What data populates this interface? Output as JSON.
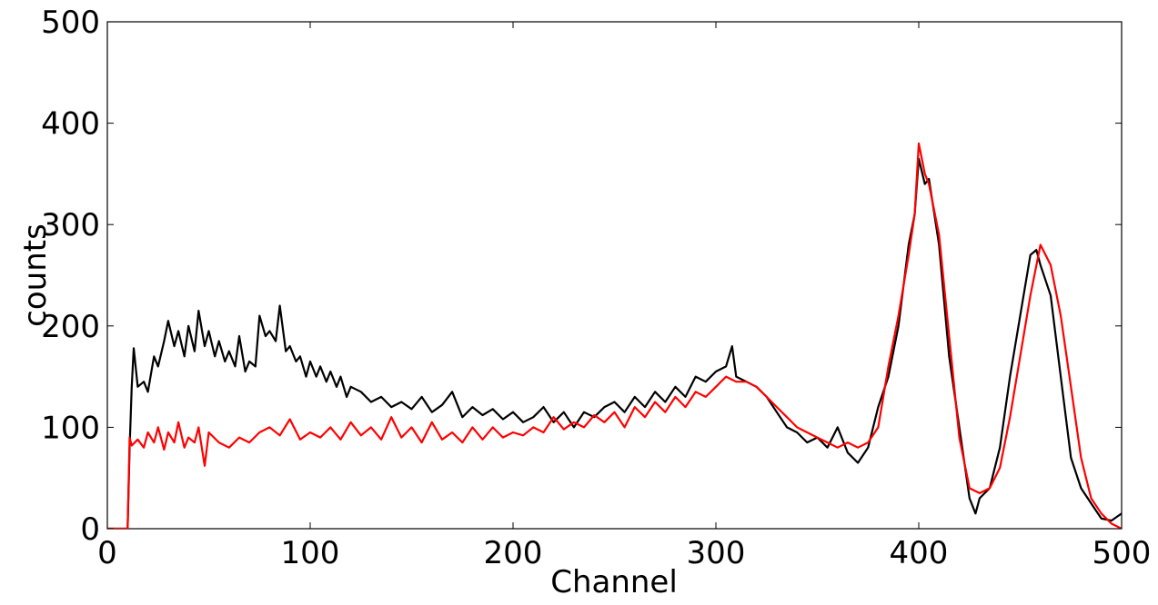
{
  "chart_data": {
    "type": "line",
    "title": "",
    "xlabel": "Channel",
    "ylabel": "counts",
    "xlim": [
      0,
      500
    ],
    "ylim": [
      0,
      500
    ],
    "xticks": [
      0,
      100,
      200,
      300,
      400,
      500
    ],
    "yticks": [
      0,
      100,
      200,
      300,
      400,
      500
    ],
    "grid": false,
    "legend": "none",
    "series": [
      {
        "color": "#000000",
        "x": [
          0,
          5,
          10,
          11,
          12,
          13,
          15,
          18,
          20,
          23,
          25,
          28,
          30,
          33,
          35,
          38,
          40,
          43,
          45,
          48,
          50,
          53,
          55,
          58,
          60,
          63,
          65,
          68,
          70,
          73,
          75,
          78,
          80,
          83,
          85,
          88,
          90,
          93,
          95,
          98,
          100,
          103,
          105,
          108,
          110,
          113,
          115,
          118,
          120,
          125,
          130,
          135,
          140,
          145,
          150,
          155,
          160,
          165,
          170,
          175,
          180,
          185,
          190,
          195,
          200,
          205,
          210,
          215,
          220,
          225,
          230,
          235,
          240,
          245,
          250,
          255,
          260,
          265,
          270,
          275,
          280,
          285,
          290,
          295,
          300,
          305,
          308,
          310,
          315,
          320,
          325,
          330,
          335,
          340,
          345,
          350,
          355,
          360,
          365,
          370,
          375,
          380,
          385,
          390,
          395,
          398,
          400,
          403,
          405,
          410,
          415,
          420,
          425,
          428,
          430,
          435,
          440,
          445,
          450,
          455,
          458,
          460,
          465,
          470,
          475,
          480,
          485,
          490,
          495,
          500
        ],
        "y": [
          0,
          0,
          0,
          80,
          140,
          178,
          140,
          145,
          135,
          170,
          160,
          185,
          205,
          180,
          195,
          170,
          200,
          175,
          215,
          180,
          195,
          170,
          185,
          165,
          175,
          160,
          190,
          155,
          165,
          160,
          210,
          190,
          195,
          185,
          220,
          175,
          180,
          165,
          170,
          150,
          165,
          150,
          160,
          145,
          155,
          140,
          150,
          130,
          140,
          135,
          125,
          130,
          120,
          125,
          118,
          130,
          115,
          122,
          135,
          110,
          120,
          112,
          118,
          108,
          115,
          105,
          110,
          120,
          105,
          115,
          100,
          115,
          110,
          120,
          125,
          115,
          130,
          120,
          135,
          125,
          140,
          130,
          150,
          145,
          155,
          160,
          180,
          150,
          145,
          140,
          130,
          115,
          100,
          95,
          85,
          90,
          80,
          100,
          75,
          65,
          80,
          120,
          150,
          200,
          280,
          310,
          365,
          340,
          345,
          280,
          170,
          100,
          30,
          15,
          30,
          40,
          80,
          150,
          210,
          270,
          275,
          260,
          230,
          150,
          70,
          40,
          25,
          10,
          8,
          15
        ]
      },
      {
        "color": "#ff0000",
        "x": [
          0,
          5,
          10,
          11,
          12,
          15,
          18,
          20,
          23,
          25,
          28,
          30,
          33,
          35,
          38,
          40,
          43,
          45,
          48,
          50,
          55,
          60,
          65,
          70,
          75,
          80,
          85,
          90,
          95,
          100,
          105,
          110,
          115,
          120,
          125,
          130,
          135,
          140,
          145,
          150,
          155,
          160,
          165,
          170,
          175,
          180,
          185,
          190,
          195,
          200,
          205,
          210,
          215,
          220,
          225,
          230,
          235,
          240,
          245,
          250,
          255,
          260,
          265,
          270,
          275,
          280,
          285,
          290,
          295,
          300,
          305,
          310,
          315,
          320,
          325,
          330,
          335,
          340,
          345,
          350,
          355,
          360,
          365,
          370,
          375,
          380,
          385,
          390,
          395,
          398,
          400,
          403,
          405,
          410,
          415,
          420,
          425,
          430,
          435,
          440,
          445,
          450,
          455,
          460,
          465,
          470,
          475,
          480,
          485,
          490,
          495,
          500
        ],
        "y": [
          0,
          0,
          0,
          90,
          82,
          88,
          80,
          95,
          85,
          100,
          78,
          95,
          85,
          105,
          80,
          90,
          85,
          100,
          62,
          95,
          85,
          80,
          90,
          85,
          95,
          100,
          92,
          108,
          88,
          95,
          90,
          100,
          88,
          105,
          92,
          100,
          88,
          110,
          90,
          100,
          85,
          105,
          88,
          95,
          85,
          100,
          88,
          100,
          90,
          95,
          92,
          100,
          95,
          110,
          98,
          105,
          100,
          112,
          105,
          115,
          100,
          120,
          110,
          125,
          115,
          130,
          120,
          135,
          130,
          140,
          150,
          145,
          145,
          140,
          130,
          120,
          110,
          100,
          95,
          90,
          85,
          80,
          85,
          80,
          85,
          100,
          160,
          210,
          270,
          310,
          380,
          350,
          340,
          290,
          190,
          90,
          40,
          35,
          40,
          60,
          110,
          170,
          230,
          280,
          260,
          210,
          140,
          70,
          30,
          15,
          5,
          0
        ]
      }
    ]
  }
}
